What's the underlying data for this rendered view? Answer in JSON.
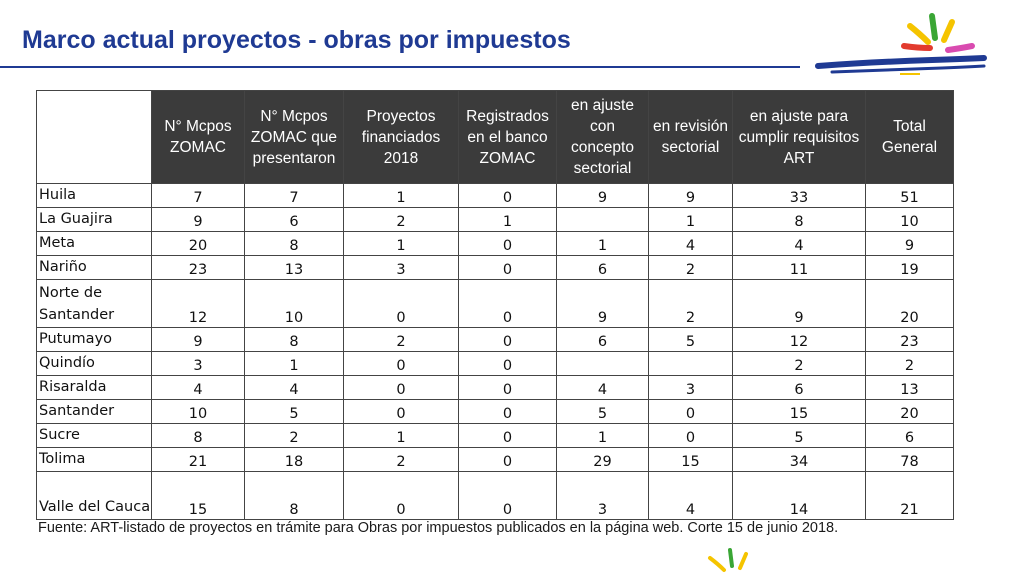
{
  "title": "Marco actual proyectos - obras por impuestos",
  "table": {
    "headers": [
      "",
      "N° Mcpos ZOMAC",
      "N° Mcpos ZOMAC que presentaron",
      "Proyectos financiados 2018",
      "Registrados en el banco ZOMAC",
      "en ajuste con concepto sectorial",
      "en revisión sectorial",
      "en ajuste para cumplir requisitos ART",
      "Total General"
    ],
    "rows": [
      [
        "Huila",
        "7",
        "7",
        "1",
        "0",
        "9",
        "9",
        "33",
        "51"
      ],
      [
        "La Guajira",
        "9",
        "6",
        "2",
        "1",
        "",
        "1",
        "8",
        "10"
      ],
      [
        "Meta",
        "20",
        "8",
        "1",
        "0",
        "1",
        "4",
        "4",
        "9"
      ],
      [
        "Nariño",
        "23",
        "13",
        "3",
        "0",
        "6",
        "2",
        "11",
        "19"
      ],
      [
        "Norte de Santander",
        "12",
        "10",
        "0",
        "0",
        "9",
        "2",
        "9",
        "20"
      ],
      [
        "Putumayo",
        "9",
        "8",
        "2",
        "0",
        "6",
        "5",
        "12",
        "23"
      ],
      [
        "Quindío",
        "3",
        "1",
        "0",
        "0",
        "",
        "",
        "2",
        "2"
      ],
      [
        "Risaralda",
        "4",
        "4",
        "0",
        "0",
        "4",
        "3",
        "6",
        "13"
      ],
      [
        "Santander",
        "10",
        "5",
        "0",
        "0",
        "5",
        "0",
        "15",
        "20"
      ],
      [
        "Sucre",
        "8",
        "2",
        "1",
        "0",
        "1",
        "0",
        "5",
        "6"
      ],
      [
        "Tolima",
        "21",
        "18",
        "2",
        "0",
        "29",
        "15",
        "34",
        "78"
      ],
      [
        "Valle del Cauca",
        "15",
        "8",
        "0",
        "0",
        "3",
        "4",
        "14",
        "21"
      ]
    ]
  },
  "source_note": "Fuente: ART-listado de proyectos en trámite para Obras por impuestos publicados en la página web. Corte 15 de junio 2018.",
  "colors": {
    "title": "#1f3a93",
    "header_bg": "#3b3b3b",
    "logo_yellow": "#f5c400",
    "logo_green": "#3aa635",
    "logo_red": "#e23b2e",
    "logo_pink": "#d94bb0",
    "logo_blue": "#1f3a93"
  },
  "icons": {
    "logo": "art-logo-icon"
  }
}
